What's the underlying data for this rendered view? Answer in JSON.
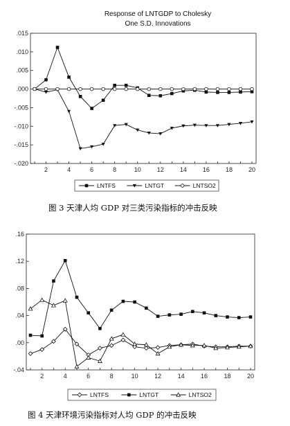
{
  "chart_data": [
    {
      "type": "line",
      "title": "Response of LNTGDP to Cholesky",
      "subtitle": "One S.D. Innovations",
      "caption": "图 3   天津人均 GDP 对三类污染指标的冲击反映",
      "x": [
        1,
        2,
        3,
        4,
        5,
        6,
        7,
        8,
        9,
        10,
        11,
        12,
        13,
        14,
        15,
        16,
        17,
        18,
        19,
        20
      ],
      "x_ticks": [
        2,
        4,
        6,
        8,
        10,
        12,
        14,
        16,
        18,
        20
      ],
      "ylim": [
        -0.02,
        0.015
      ],
      "y_ticks": [
        {
          "v": 0.015,
          "label": ".015"
        },
        {
          "v": 0.01,
          "label": ".010"
        },
        {
          "v": 0.005,
          "label": ".005"
        },
        {
          "v": 0.0,
          "label": ".000"
        },
        {
          "v": -0.005,
          "label": "-.005"
        },
        {
          "v": -0.01,
          "label": "-.010"
        },
        {
          "v": -0.015,
          "label": "-.015"
        },
        {
          "v": -0.02,
          "label": "-.020"
        }
      ],
      "grid": false,
      "legend_position": "bottom",
      "series": [
        {
          "name": "LNTFS",
          "marker": "filled-square",
          "values": [
            0.0,
            0.0025,
            0.0112,
            0.0032,
            -0.002,
            -0.0052,
            -0.003,
            0.001,
            0.001,
            0.0003,
            -0.0017,
            -0.0018,
            -0.0012,
            -0.0005,
            -0.0003,
            -0.0008,
            -0.0009,
            -0.0009,
            -0.0008,
            -0.0007
          ]
        },
        {
          "name": "LNTGT",
          "marker": "filled-triangle-down",
          "values": [
            0.0,
            -0.0008,
            -0.0002,
            -0.006,
            -0.016,
            -0.0155,
            -0.0148,
            -0.0098,
            -0.0095,
            -0.011,
            -0.0118,
            -0.012,
            -0.0105,
            -0.0099,
            -0.0097,
            -0.0098,
            -0.0098,
            -0.0095,
            -0.0092,
            -0.0088
          ]
        },
        {
          "name": "LNTSO2",
          "marker": "open-circle",
          "values": [
            0.0,
            0.0,
            0.0,
            0.0,
            0.0,
            0.0,
            0.0,
            0.0,
            0.0,
            0.0,
            0.0,
            0.0,
            0.0,
            0.0,
            0.0,
            0.0,
            0.0,
            0.0,
            0.0,
            0.0
          ]
        }
      ]
    },
    {
      "type": "line",
      "title": "",
      "caption": "图 4   天津环境污染指标对人均 GDP 的冲击反映",
      "x": [
        1,
        2,
        3,
        4,
        5,
        6,
        7,
        8,
        9,
        10,
        11,
        12,
        13,
        14,
        15,
        16,
        17,
        18,
        19,
        20
      ],
      "x_ticks": [
        2,
        4,
        6,
        8,
        10,
        12,
        14,
        16,
        18,
        20
      ],
      "ylim": [
        -0.04,
        0.16
      ],
      "y_ticks": [
        {
          "v": 0.16,
          "label": ".16"
        },
        {
          "v": 0.12,
          "label": ".12"
        },
        {
          "v": 0.08,
          "label": ".08"
        },
        {
          "v": 0.04,
          "label": ".04"
        },
        {
          "v": 0.0,
          "label": ".00"
        },
        {
          "v": -0.04,
          "label": "-.04"
        }
      ],
      "grid": false,
      "legend_position": "bottom",
      "series": [
        {
          "name": "LNTFS",
          "marker": "open-diamond",
          "values": [
            -0.016,
            -0.01,
            0.002,
            0.02,
            -0.002,
            -0.018,
            -0.008,
            -0.004,
            0.004,
            -0.006,
            -0.008,
            -0.007,
            -0.004,
            -0.003,
            -0.002,
            -0.005,
            -0.006,
            -0.006,
            -0.005,
            -0.005
          ]
        },
        {
          "name": "LNTGT",
          "marker": "filled-square",
          "values": [
            0.011,
            0.01,
            0.091,
            0.121,
            0.067,
            0.044,
            0.021,
            0.048,
            0.061,
            0.06,
            0.051,
            0.039,
            0.041,
            0.042,
            0.046,
            0.044,
            0.04,
            0.038,
            0.037,
            0.038
          ]
        },
        {
          "name": "LNTSO2",
          "marker": "open-triangle",
          "values": [
            0.05,
            0.063,
            0.055,
            0.062,
            -0.035,
            -0.022,
            -0.027,
            0.006,
            0.012,
            -0.002,
            -0.003,
            -0.016,
            -0.006,
            -0.003,
            -0.004,
            -0.004,
            -0.008,
            -0.007,
            -0.006,
            -0.005
          ]
        }
      ]
    }
  ]
}
